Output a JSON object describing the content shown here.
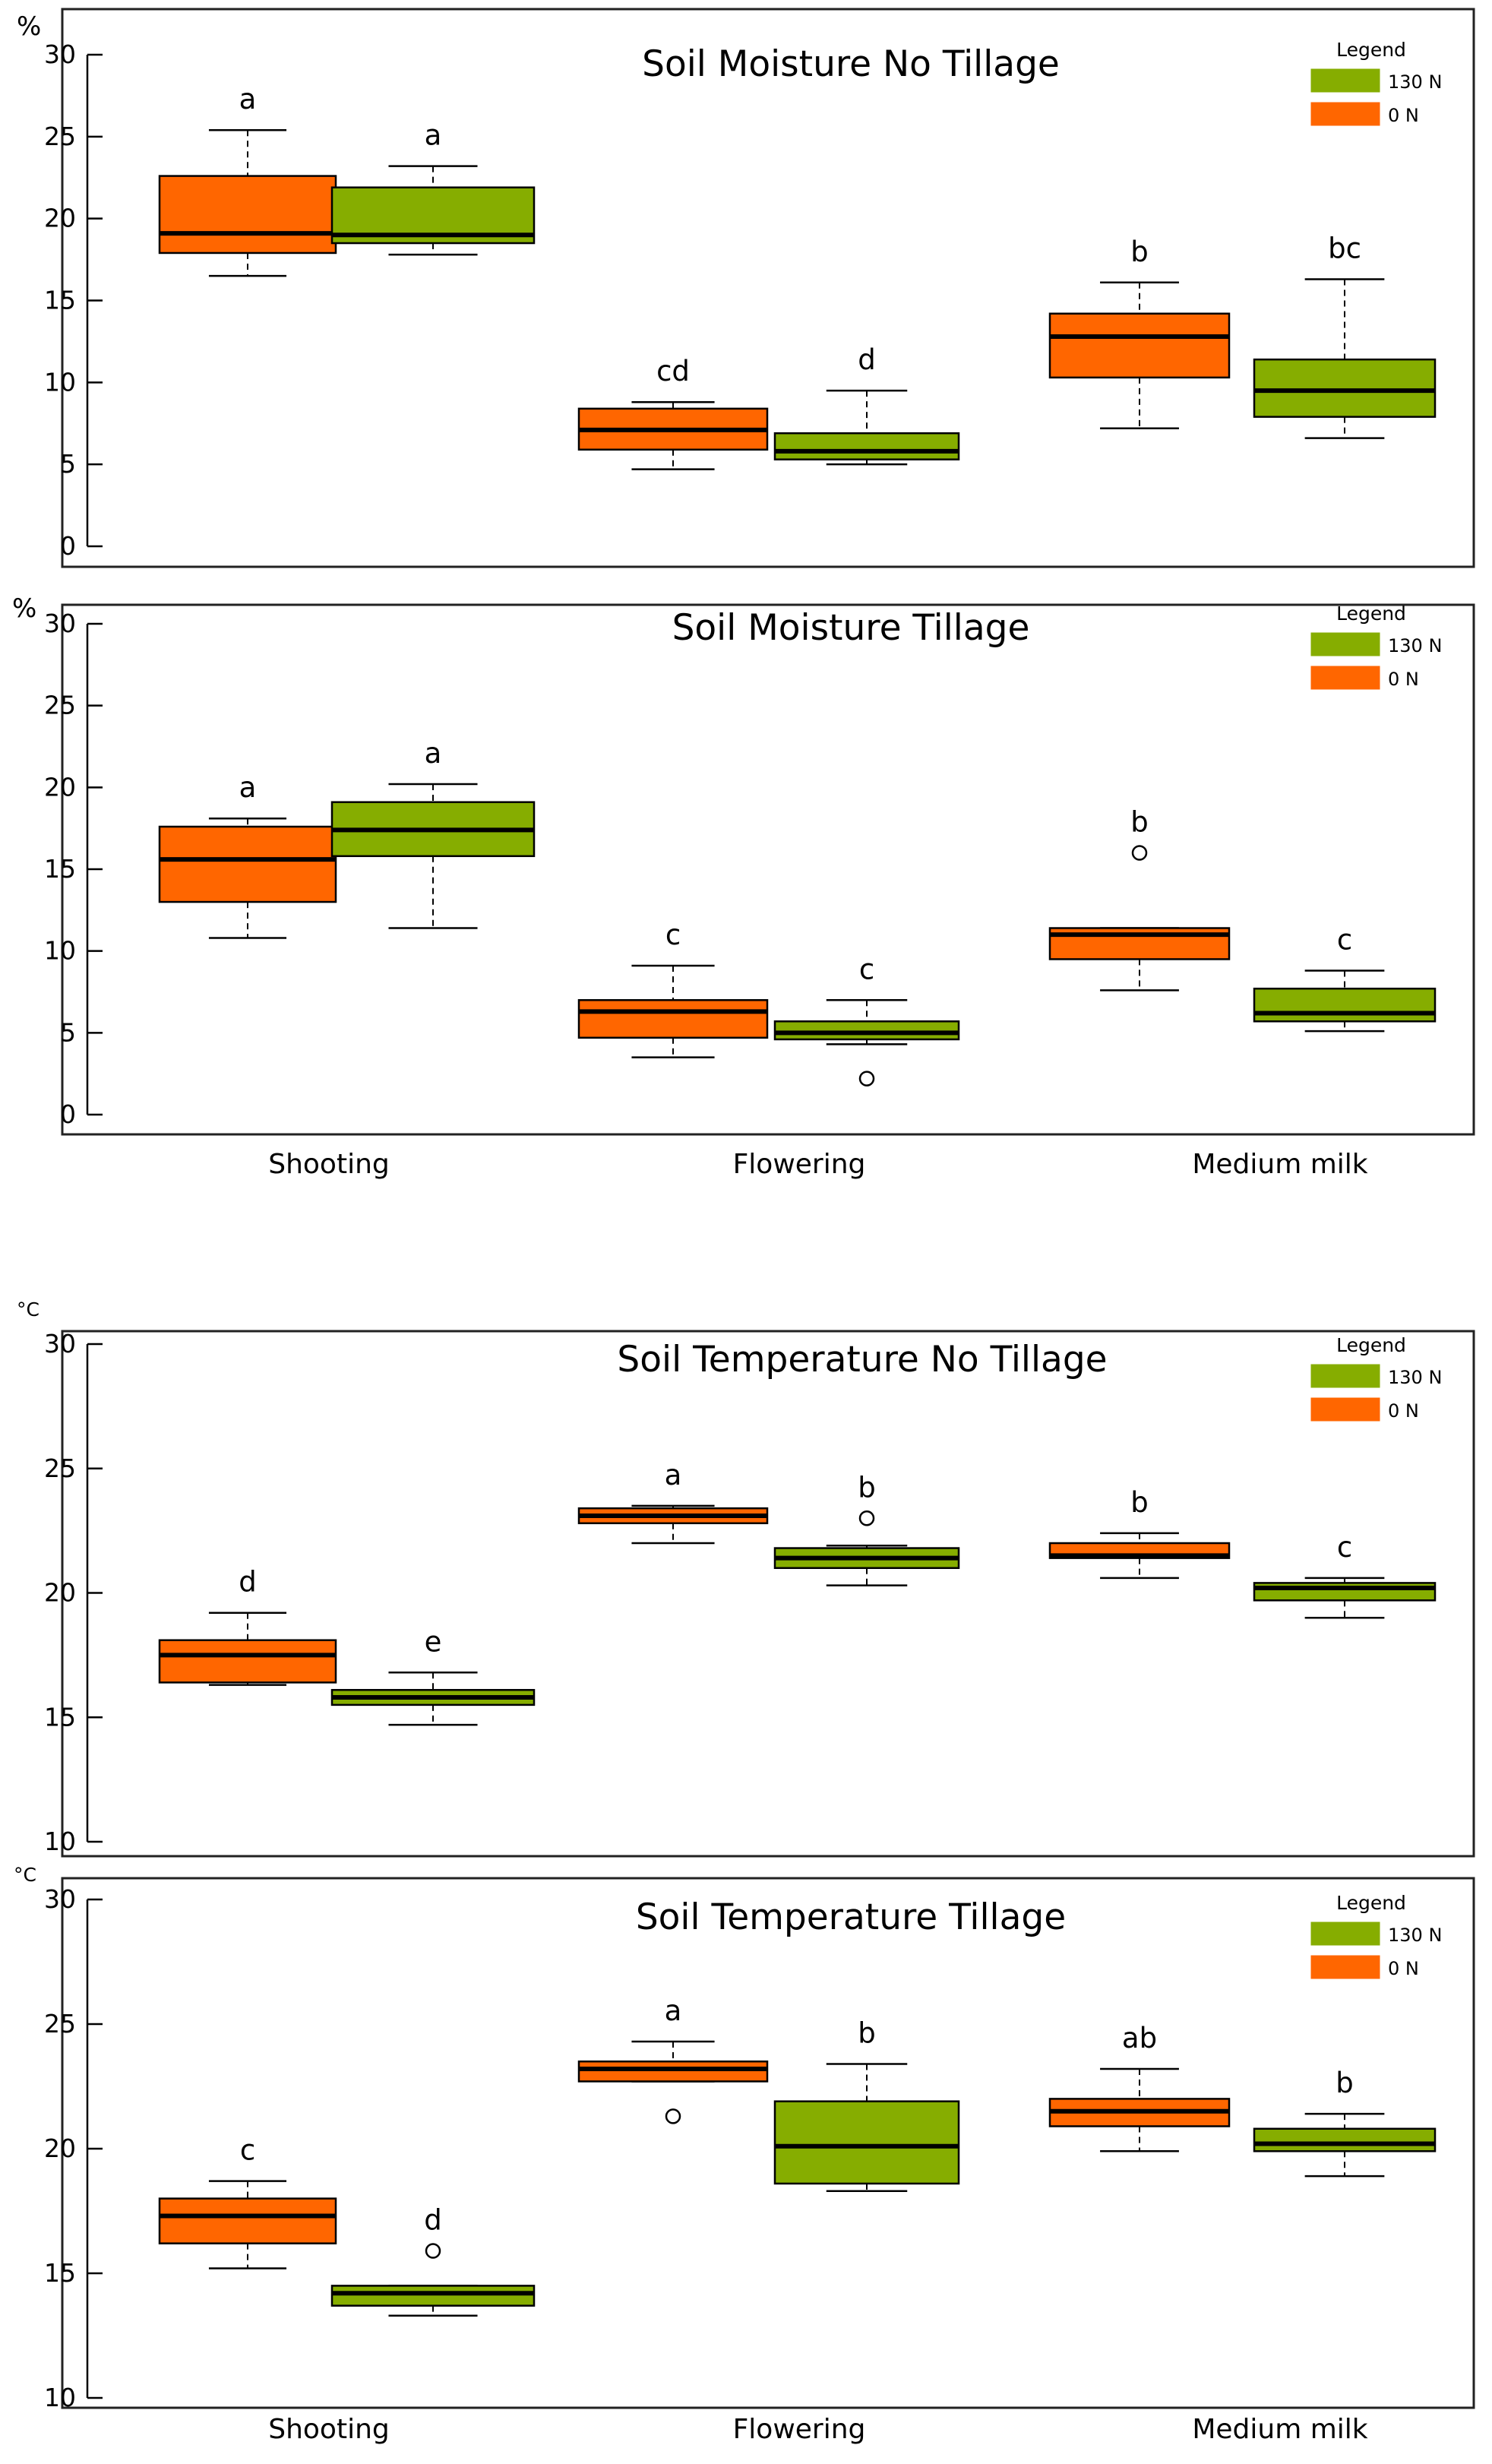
{
  "colors": {
    "n130": "#86ad00",
    "n0": "#ff6600",
    "frame": "#222222"
  },
  "chart_data": [
    {
      "type": "boxplot",
      "title": "Soil Moisture No Tillage",
      "ylabel": "%",
      "ylim": [
        0,
        30
      ],
      "yticks": [
        0,
        5,
        10,
        15,
        20,
        25,
        30
      ],
      "categories": [
        "Shooting",
        "Flowering",
        "Medium milk"
      ],
      "show_categories": false,
      "legend": {
        "title": "Legend",
        "entries": [
          {
            "label": "130 N",
            "series": "n130"
          },
          {
            "label": "0 N",
            "series": "n0"
          }
        ],
        "position": "top-right"
      },
      "boxes": [
        {
          "category": "Shooting",
          "series": "0 N",
          "color": "n0",
          "min": 16.5,
          "q1": 17.9,
          "median": 19.1,
          "q3": 22.6,
          "max": 25.4,
          "outliers": [],
          "letter": "a"
        },
        {
          "category": "Shooting",
          "series": "130 N",
          "color": "n130",
          "min": 17.8,
          "q1": 18.5,
          "median": 19.0,
          "q3": 21.9,
          "max": 23.2,
          "outliers": [],
          "letter": "a"
        },
        {
          "category": "Flowering",
          "series": "0 N",
          "color": "n0",
          "min": 4.7,
          "q1": 5.9,
          "median": 7.1,
          "q3": 8.4,
          "max": 8.8,
          "outliers": [],
          "letter": "cd"
        },
        {
          "category": "Flowering",
          "series": "130 N",
          "color": "n130",
          "min": 5.0,
          "q1": 5.3,
          "median": 5.8,
          "q3": 6.9,
          "max": 9.5,
          "outliers": [],
          "letter": "d"
        },
        {
          "category": "Medium milk",
          "series": "0 N",
          "color": "n0",
          "min": 7.2,
          "q1": 10.3,
          "median": 12.8,
          "q3": 14.2,
          "max": 16.1,
          "outliers": [],
          "letter": "b"
        },
        {
          "category": "Medium milk",
          "series": "130 N",
          "color": "n130",
          "min": 6.6,
          "q1": 7.9,
          "median": 9.5,
          "q3": 11.4,
          "max": 16.3,
          "outliers": [],
          "letter": "bc"
        }
      ]
    },
    {
      "type": "boxplot",
      "title": "Soil Moisture Tillage",
      "ylabel": "%",
      "ylim": [
        0,
        30
      ],
      "yticks": [
        0,
        5,
        10,
        15,
        20,
        25,
        30
      ],
      "categories": [
        "Shooting",
        "Flowering",
        "Medium milk"
      ],
      "show_categories": true,
      "legend": {
        "title": "Legend",
        "entries": [
          {
            "label": "130 N",
            "series": "n130"
          },
          {
            "label": "0 N",
            "series": "n0"
          }
        ],
        "position": "top-right"
      },
      "boxes": [
        {
          "category": "Shooting",
          "series": "0 N",
          "color": "n0",
          "min": 10.8,
          "q1": 13.0,
          "median": 15.6,
          "q3": 17.6,
          "max": 18.1,
          "outliers": [],
          "letter": "a"
        },
        {
          "category": "Shooting",
          "series": "130 N",
          "color": "n130",
          "min": 11.4,
          "q1": 15.8,
          "median": 17.4,
          "q3": 19.1,
          "max": 20.2,
          "outliers": [],
          "letter": "a"
        },
        {
          "category": "Flowering",
          "series": "0 N",
          "color": "n0",
          "min": 3.5,
          "q1": 4.7,
          "median": 6.3,
          "q3": 7.0,
          "max": 9.1,
          "outliers": [],
          "letter": "c"
        },
        {
          "category": "Flowering",
          "series": "130 N",
          "color": "n130",
          "min": 4.3,
          "q1": 4.6,
          "median": 5.0,
          "q3": 5.7,
          "max": 7.0,
          "outliers": [
            2.2
          ],
          "letter": "c"
        },
        {
          "category": "Medium milk",
          "series": "0 N",
          "color": "n0",
          "min": 7.6,
          "q1": 9.5,
          "median": 11.0,
          "q3": 11.4,
          "max": 11.4,
          "outliers": [
            16.0
          ],
          "letter": "b"
        },
        {
          "category": "Medium milk",
          "series": "130 N",
          "color": "n130",
          "min": 5.1,
          "q1": 5.7,
          "median": 6.2,
          "q3": 7.7,
          "max": 8.8,
          "outliers": [],
          "letter": "c"
        }
      ]
    },
    {
      "type": "boxplot",
      "title": "Soil Temperature No Tillage",
      "ylabel": "°C",
      "ylim": [
        10,
        30
      ],
      "yticks": [
        10,
        15,
        20,
        25,
        30
      ],
      "categories": [
        "Shooting",
        "Flowering",
        "Medium milk"
      ],
      "show_categories": false,
      "legend": {
        "title": "Legend",
        "entries": [
          {
            "label": "130 N",
            "series": "n130"
          },
          {
            "label": "0 N",
            "series": "n0"
          }
        ],
        "position": "top-right"
      },
      "boxes": [
        {
          "category": "Shooting",
          "series": "0 N",
          "color": "n0",
          "min": 16.3,
          "q1": 16.4,
          "median": 17.5,
          "q3": 18.1,
          "max": 19.2,
          "outliers": [],
          "letter": "d"
        },
        {
          "category": "Shooting",
          "series": "130 N",
          "color": "n130",
          "min": 14.7,
          "q1": 15.5,
          "median": 15.8,
          "q3": 16.1,
          "max": 16.8,
          "outliers": [],
          "letter": "e"
        },
        {
          "category": "Flowering",
          "series": "0 N",
          "color": "n0",
          "min": 22.0,
          "q1": 22.8,
          "median": 23.1,
          "q3": 23.4,
          "max": 23.5,
          "outliers": [],
          "letter": "a"
        },
        {
          "category": "Flowering",
          "series": "130 N",
          "color": "n130",
          "min": 20.3,
          "q1": 21.0,
          "median": 21.4,
          "q3": 21.8,
          "max": 21.9,
          "outliers": [
            23.0
          ],
          "letter": "b"
        },
        {
          "category": "Medium milk",
          "series": "0 N",
          "color": "n0",
          "min": 20.6,
          "q1": 21.4,
          "median": 21.5,
          "q3": 22.0,
          "max": 22.4,
          "outliers": [],
          "letter": "b"
        },
        {
          "category": "Medium milk",
          "series": "130 N",
          "color": "n130",
          "min": 19.0,
          "q1": 19.7,
          "median": 20.2,
          "q3": 20.4,
          "max": 20.6,
          "outliers": [],
          "letter": "c"
        }
      ]
    },
    {
      "type": "boxplot",
      "title": "Soil Temperature Tillage",
      "ylabel": "°C",
      "ylim": [
        10,
        30
      ],
      "yticks": [
        10,
        15,
        20,
        25,
        30
      ],
      "categories": [
        "Shooting",
        "Flowering",
        "Medium milk"
      ],
      "show_categories": true,
      "legend": {
        "title": "Legend",
        "entries": [
          {
            "label": "130 N",
            "series": "n130"
          },
          {
            "label": "0 N",
            "series": "n0"
          }
        ],
        "position": "top-right"
      },
      "boxes": [
        {
          "category": "Shooting",
          "series": "0 N",
          "color": "n0",
          "min": 15.2,
          "q1": 16.2,
          "median": 17.3,
          "q3": 18.0,
          "max": 18.7,
          "outliers": [],
          "letter": "c"
        },
        {
          "category": "Shooting",
          "series": "130 N",
          "color": "n130",
          "min": 13.3,
          "q1": 13.7,
          "median": 14.2,
          "q3": 14.5,
          "max": 14.5,
          "outliers": [
            15.9
          ],
          "letter": "d"
        },
        {
          "category": "Flowering",
          "series": "0 N",
          "color": "n0",
          "min": 22.7,
          "q1": 22.7,
          "median": 23.2,
          "q3": 23.5,
          "max": 24.3,
          "outliers": [
            21.3
          ],
          "letter": "a"
        },
        {
          "category": "Flowering",
          "series": "130 N",
          "color": "n130",
          "min": 18.3,
          "q1": 18.6,
          "median": 20.1,
          "q3": 21.9,
          "max": 23.4,
          "outliers": [],
          "letter": "b"
        },
        {
          "category": "Medium milk",
          "series": "0 N",
          "color": "n0",
          "min": 19.9,
          "q1": 20.9,
          "median": 21.5,
          "q3": 22.0,
          "max": 23.2,
          "outliers": [],
          "letter": "ab"
        },
        {
          "category": "Medium milk",
          "series": "130 N",
          "color": "n130",
          "min": 18.9,
          "q1": 19.9,
          "median": 20.2,
          "q3": 20.8,
          "max": 21.4,
          "outliers": [],
          "letter": "b"
        }
      ]
    }
  ]
}
